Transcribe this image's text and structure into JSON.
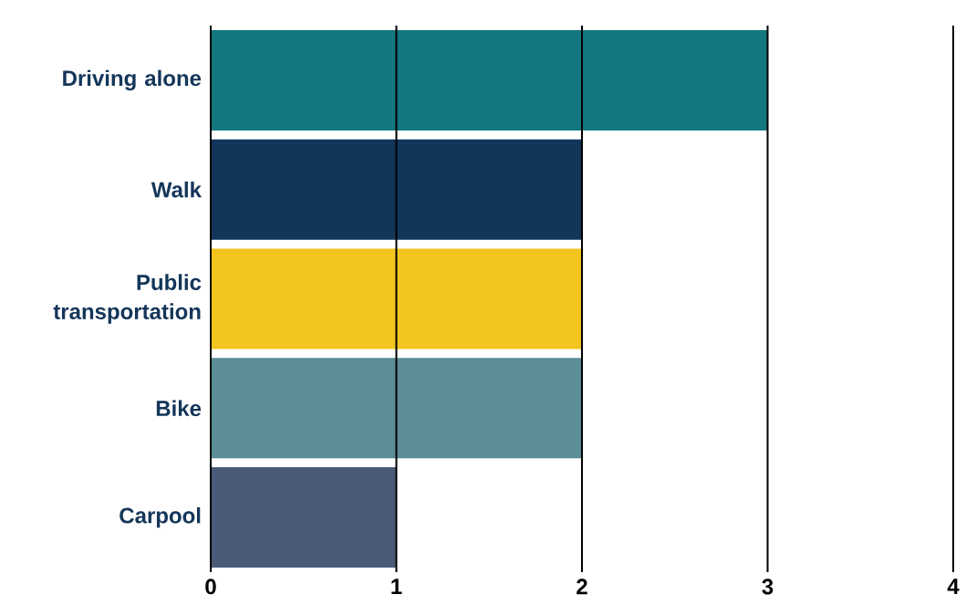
{
  "chart_data": {
    "type": "bar",
    "orientation": "horizontal",
    "categories": [
      "Driving alone",
      "Walk",
      "Public transportation",
      "Bike",
      "Carpool"
    ],
    "values": [
      3,
      2,
      2,
      2,
      1
    ],
    "colors": [
      "#13777f",
      "#12365a",
      "#f2c51f",
      "#5b8e96",
      "#4a5a78"
    ],
    "xlim": [
      0,
      4
    ],
    "xticks": [
      0,
      1,
      2,
      3,
      4
    ],
    "grid": "x"
  }
}
